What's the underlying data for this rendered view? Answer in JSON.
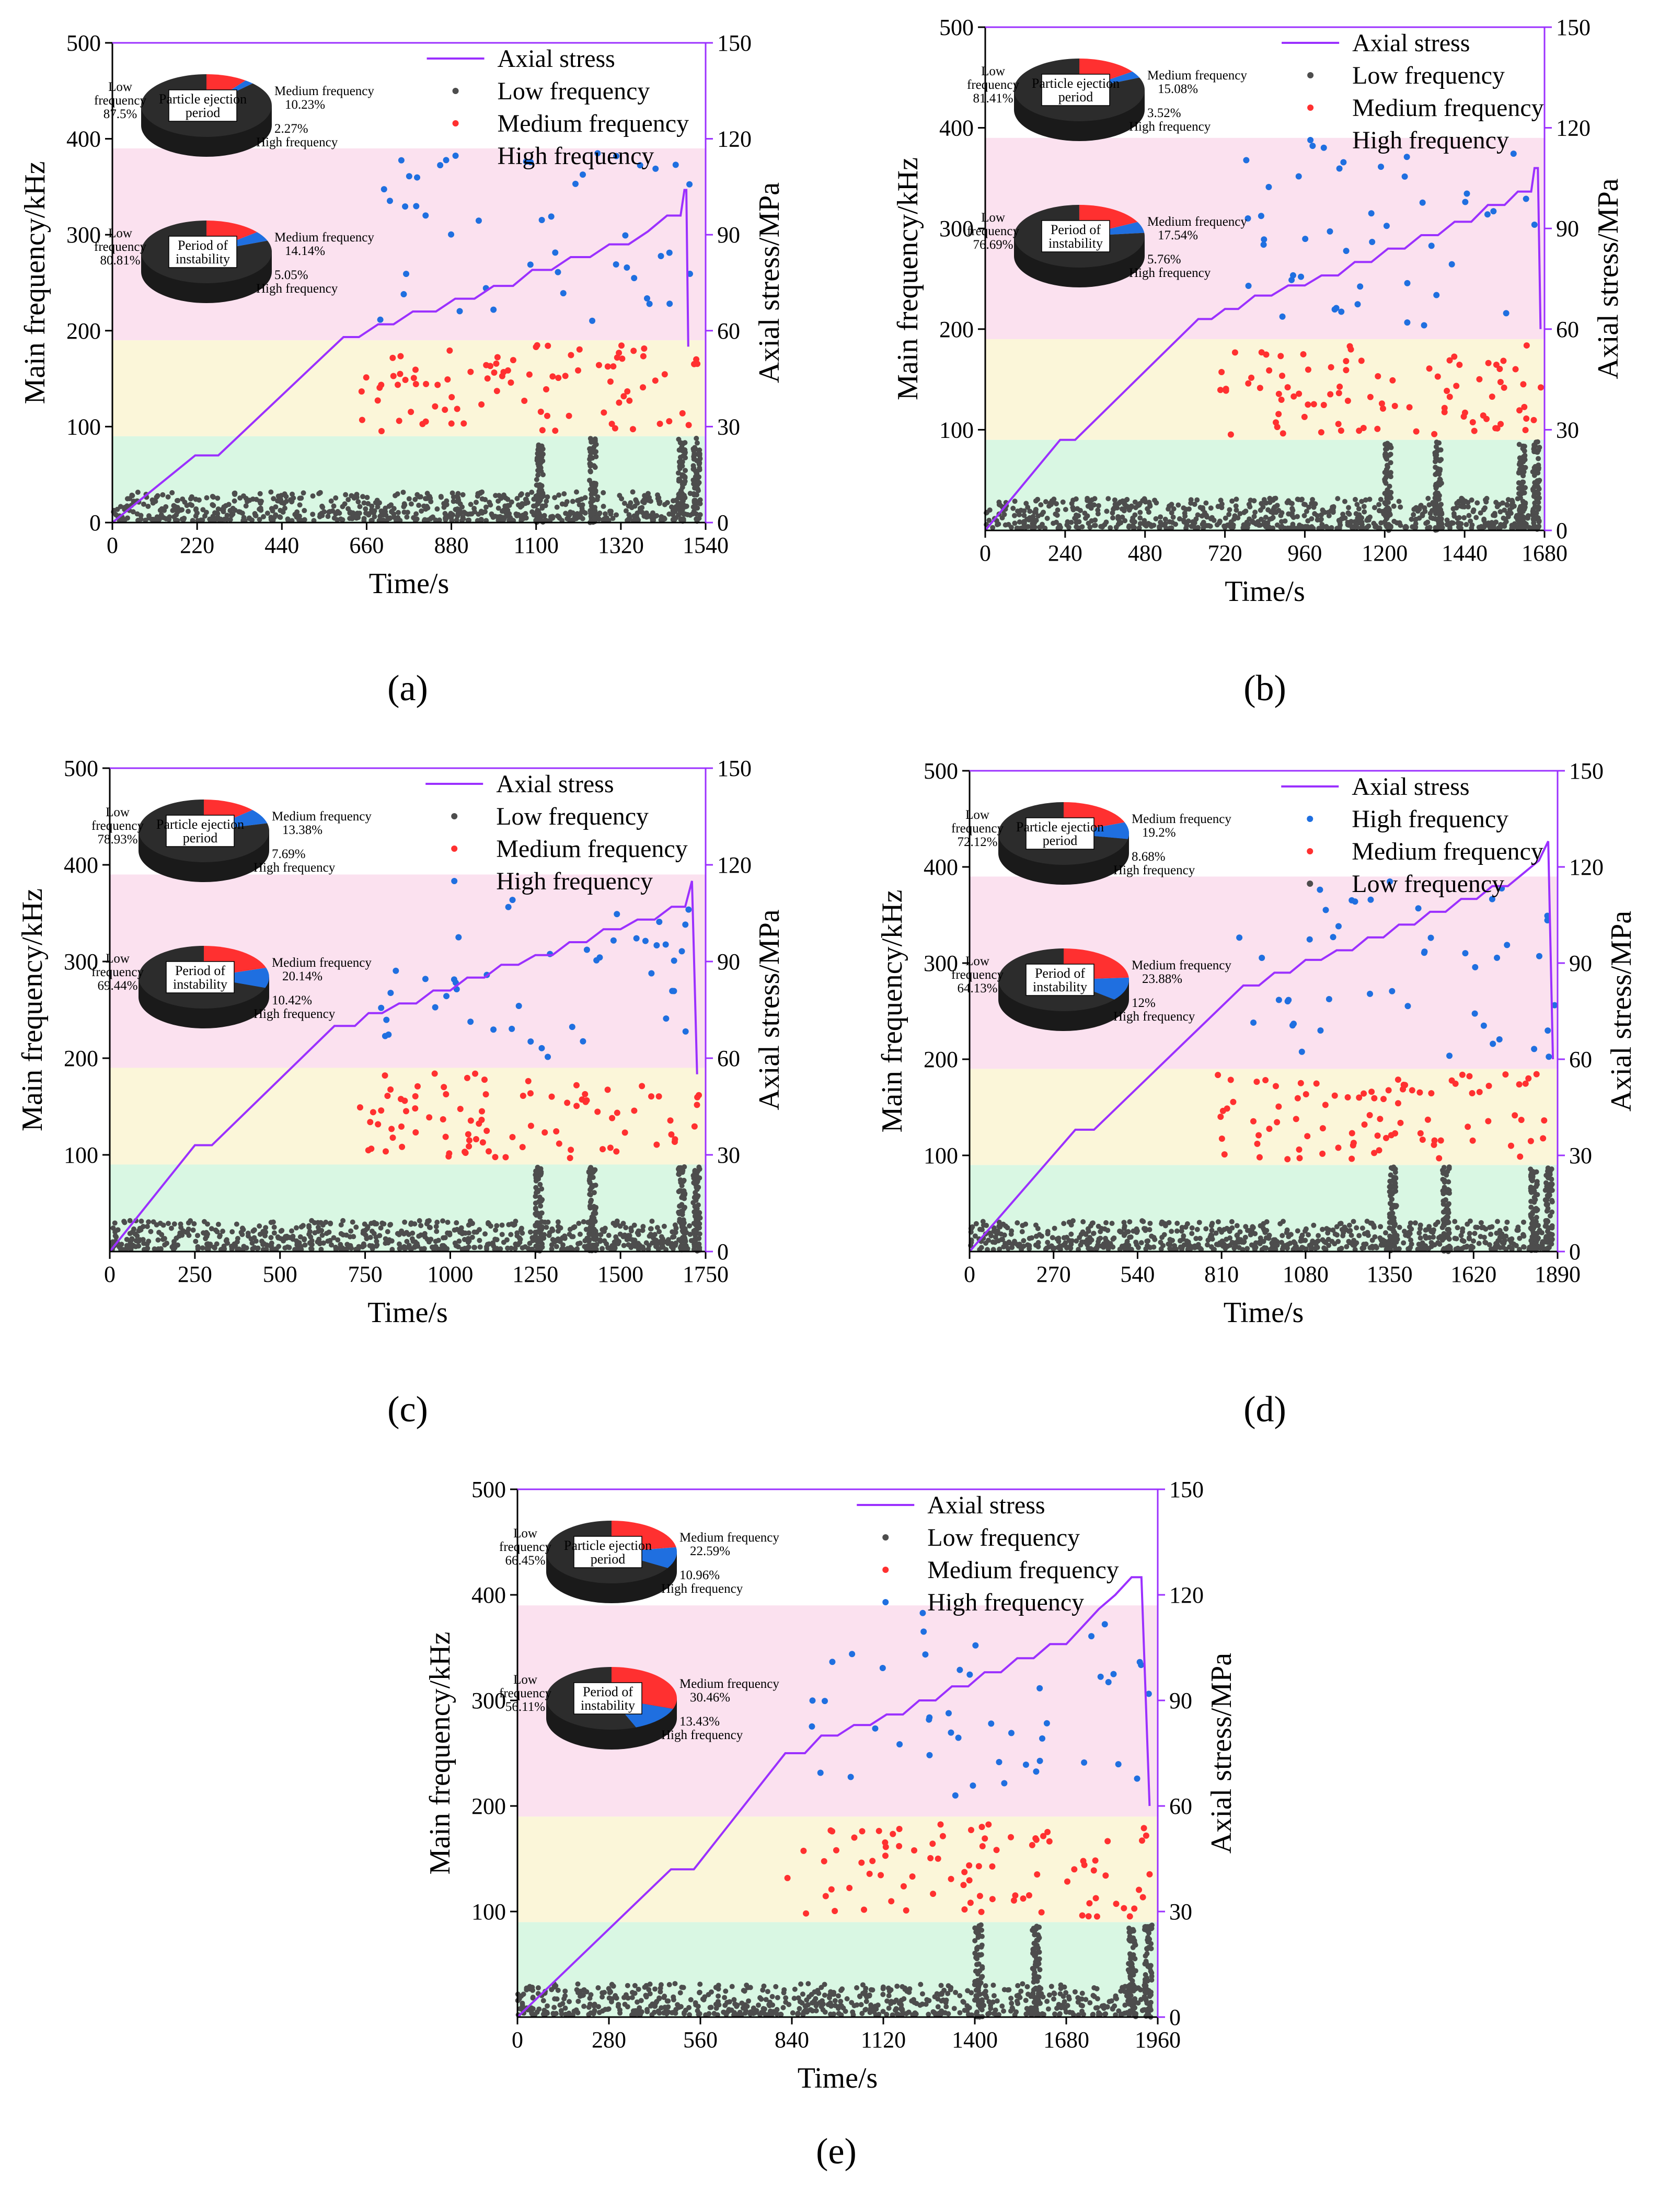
{
  "figure": {
    "panel_labels": [
      "(a)",
      "(b)",
      "(c)",
      "(d)",
      "(e)"
    ]
  },
  "colors": {
    "axial_stress": "#9b30ff",
    "low_frequency": "#4d4d4d",
    "medium_frequency": "#ff3030",
    "high_frequency": "#1f6fe0",
    "band_low": "#d9f7e3",
    "band_medium": "#fbf6d9",
    "band_high": "#fbe1ef",
    "pie_dark": "#2c2c2c"
  },
  "chart_data": [
    {
      "type": "scatter",
      "panel": "(a)",
      "xlabel": "Time/s",
      "ylabel": "Main frequency/kHz",
      "y2label": "Axial stress/MPa",
      "xlim": [
        0,
        1540
      ],
      "ylim": [
        0,
        500
      ],
      "y2lim": [
        0,
        150
      ],
      "xticks": [
        0,
        220,
        440,
        660,
        880,
        1100,
        1320,
        1540
      ],
      "yticks": [
        0,
        100,
        200,
        300,
        400,
        500
      ],
      "y2ticks": [
        0,
        30,
        60,
        90,
        120,
        150
      ],
      "frequency_bands_kHz": {
        "low": [
          0,
          90
        ],
        "medium": [
          90,
          190
        ],
        "high": [
          190,
          390
        ]
      },
      "legend": [
        "Axial stress",
        "Low frequency",
        "Medium frequency",
        "High frequency"
      ],
      "axial_stress": {
        "x": [
          0,
          215,
          275,
          600,
          640,
          690,
          730,
          780,
          840,
          890,
          940,
          990,
          1040,
          1090,
          1140,
          1190,
          1240,
          1290,
          1340,
          1390,
          1440,
          1475,
          1485,
          1490,
          1495
        ],
        "y": [
          0,
          21,
          21,
          58,
          58,
          62,
          62,
          66,
          66,
          70,
          70,
          74,
          74,
          79,
          79,
          83,
          83,
          87,
          87,
          91,
          96,
          96,
          104,
          104,
          55
        ]
      },
      "pies": [
        {
          "title": "Particle ejection period",
          "slices": [
            {
              "name": "Low frequency",
              "value": 87.5,
              "label": "87.5%"
            },
            {
              "name": "Medium frequency",
              "value": 10.23,
              "label": "10.23%"
            },
            {
              "name": "High frequency",
              "value": 2.27,
              "label": "2.27%"
            }
          ]
        },
        {
          "title": "Period of instability",
          "slices": [
            {
              "name": "Low frequency",
              "value": 80.81,
              "label": "80.81%"
            },
            {
              "name": "Medium frequency",
              "value": 14.14,
              "label": "14.14%"
            },
            {
              "name": "High frequency",
              "value": 5.05,
              "label": "5.05%"
            }
          ]
        }
      ]
    },
    {
      "type": "scatter",
      "panel": "(b)",
      "xlabel": "Time/s",
      "ylabel": "Main frequency/kHz",
      "y2label": "Axial stress/MPa",
      "xlim": [
        0,
        1680
      ],
      "ylim": [
        0,
        500
      ],
      "y2lim": [
        0,
        150
      ],
      "xticks": [
        0,
        240,
        480,
        720,
        960,
        1200,
        1440,
        1680
      ],
      "yticks": [
        100,
        200,
        300,
        400,
        500
      ],
      "y2ticks": [
        0,
        30,
        60,
        90,
        120,
        150
      ],
      "frequency_bands_kHz": {
        "low": [
          0,
          90
        ],
        "medium": [
          90,
          190
        ],
        "high": [
          190,
          390
        ]
      },
      "legend": [
        "Axial stress",
        "Low frequency",
        "Medium frequency",
        "High frequency"
      ],
      "axial_stress": {
        "x": [
          0,
          225,
          270,
          640,
          680,
          720,
          760,
          810,
          860,
          910,
          960,
          1010,
          1060,
          1110,
          1160,
          1210,
          1260,
          1310,
          1360,
          1410,
          1460,
          1510,
          1560,
          1600,
          1640,
          1650,
          1660,
          1668
        ],
        "y": [
          0,
          27,
          27,
          63,
          63,
          66,
          66,
          70,
          70,
          73,
          73,
          76,
          76,
          80,
          80,
          84,
          84,
          88,
          88,
          92,
          92,
          97,
          97,
          101,
          101,
          108,
          108,
          60
        ]
      },
      "pies": [
        {
          "title": "Particle ejection period",
          "slices": [
            {
              "name": "Low frequency",
              "value": 81.41,
              "label": "81.41%"
            },
            {
              "name": "Medium frequency",
              "value": 15.08,
              "label": "15.08%"
            },
            {
              "name": "High frequency",
              "value": 3.52,
              "label": "3.52%"
            }
          ]
        },
        {
          "title": "Period of instability",
          "slices": [
            {
              "name": "Low frequency",
              "value": 76.69,
              "label": "76.69%"
            },
            {
              "name": "Medium frequency",
              "value": 17.54,
              "label": "17.54%"
            },
            {
              "name": "High frequency",
              "value": 5.76,
              "label": "5.76%"
            }
          ]
        }
      ]
    },
    {
      "type": "scatter",
      "panel": "(c)",
      "xlabel": "Time/s",
      "ylabel": "Main frequency/kHz",
      "y2label": "Axial stress/MPa",
      "xlim": [
        0,
        1750
      ],
      "ylim": [
        0,
        500
      ],
      "y2lim": [
        0,
        150
      ],
      "xticks": [
        0,
        250,
        500,
        750,
        1000,
        1250,
        1500,
        1750
      ],
      "yticks": [
        100,
        200,
        300,
        400,
        500
      ],
      "y2ticks": [
        0,
        30,
        60,
        90,
        120,
        150
      ],
      "frequency_bands_kHz": {
        "low": [
          0,
          90
        ],
        "medium": [
          90,
          190
        ],
        "high": [
          190,
          390
        ]
      },
      "legend": [
        "Axial stress",
        "Low frequency",
        "Medium frequency",
        "High frequency"
      ],
      "axial_stress": {
        "x": [
          0,
          250,
          300,
          660,
          720,
          760,
          800,
          850,
          900,
          950,
          1000,
          1050,
          1100,
          1150,
          1200,
          1250,
          1300,
          1350,
          1400,
          1450,
          1500,
          1550,
          1600,
          1650,
          1690,
          1710,
          1725
        ],
        "y": [
          0,
          33,
          33,
          70,
          70,
          74,
          74,
          77,
          77,
          81,
          81,
          85,
          85,
          89,
          89,
          92,
          92,
          96,
          96,
          100,
          100,
          103,
          103,
          107,
          107,
          115,
          55
        ]
      },
      "pies": [
        {
          "title": "Particle ejection period",
          "slices": [
            {
              "name": "Low frequency",
              "value": 78.93,
              "label": "78.93%"
            },
            {
              "name": "Medium frequency",
              "value": 13.38,
              "label": "13.38%"
            },
            {
              "name": "High frequency",
              "value": 7.69,
              "label": "7.69%"
            }
          ]
        },
        {
          "title": "Period of instability",
          "slices": [
            {
              "name": "Low frequency",
              "value": 69.44,
              "label": "69.44%"
            },
            {
              "name": "Medium frequency",
              "value": 20.14,
              "label": "20.14%"
            },
            {
              "name": "High frequency",
              "value": 10.42,
              "label": "10.42%"
            }
          ]
        }
      ]
    },
    {
      "type": "scatter",
      "panel": "(d)",
      "xlabel": "Time/s",
      "ylabel": "Main frequency/kHz",
      "y2label": "Axial stress/MPa",
      "xlim": [
        0,
        1890
      ],
      "ylim": [
        0,
        500
      ],
      "y2lim": [
        0,
        150
      ],
      "xticks": [
        0,
        270,
        540,
        810,
        1080,
        1350,
        1620,
        1890
      ],
      "yticks": [
        100,
        200,
        300,
        400,
        500
      ],
      "y2ticks": [
        0,
        30,
        60,
        90,
        120,
        150
      ],
      "frequency_bands_kHz": {
        "low": [
          0,
          90
        ],
        "medium": [
          90,
          190
        ],
        "high": [
          190,
          390
        ]
      },
      "legend": [
        "Axial stress",
        "High frequency",
        "Medium frequency",
        "Low frequency"
      ],
      "legend_order_note": "",
      "axial_stress": {
        "x": [
          0,
          340,
          400,
          880,
          930,
          980,
          1030,
          1080,
          1130,
          1180,
          1230,
          1280,
          1330,
          1380,
          1430,
          1480,
          1530,
          1580,
          1630,
          1680,
          1730,
          1780,
          1830,
          1860,
          1875
        ],
        "y": [
          0,
          38,
          38,
          83,
          83,
          87,
          87,
          91,
          91,
          94,
          94,
          98,
          98,
          102,
          102,
          106,
          106,
          110,
          110,
          114,
          114,
          118,
          122,
          128,
          60
        ]
      },
      "pies": [
        {
          "title": "Particle ejection period",
          "slices": [
            {
              "name": "Low frequency",
              "value": 72.12,
              "label": "72.12%"
            },
            {
              "name": "Medium frequency",
              "value": 19.2,
              "label": "19.2%"
            },
            {
              "name": "High frequency",
              "value": 8.68,
              "label": "8.68%"
            }
          ]
        },
        {
          "title": "Period of instability",
          "slices": [
            {
              "name": "Low frequency",
              "value": 64.13,
              "label": "64.13%"
            },
            {
              "name": "Medium frequency",
              "value": 23.88,
              "label": "23.88%"
            },
            {
              "name": "High frequency",
              "value": 12,
              "label": "12%"
            }
          ]
        }
      ]
    },
    {
      "type": "scatter",
      "panel": "(e)",
      "xlabel": "Time/s",
      "ylabel": "Main frequency/kHz",
      "y2label": "Axial stress/MPa",
      "xlim": [
        0,
        1960
      ],
      "ylim": [
        0,
        500
      ],
      "y2lim": [
        0,
        150
      ],
      "xticks": [
        0,
        280,
        560,
        840,
        1120,
        1400,
        1680,
        1960
      ],
      "yticks": [
        100,
        200,
        300,
        400,
        500
      ],
      "y2ticks": [
        0,
        30,
        60,
        90,
        120,
        150
      ],
      "frequency_bands_kHz": {
        "low": [
          0,
          90
        ],
        "medium": [
          90,
          190
        ],
        "high": [
          190,
          390
        ]
      },
      "legend": [
        "Axial stress",
        "Low frequency",
        "Medium frequency",
        "High frequency"
      ],
      "axial_stress": {
        "x": [
          0,
          470,
          540,
          820,
          880,
          930,
          980,
          1030,
          1080,
          1130,
          1180,
          1230,
          1280,
          1330,
          1380,
          1430,
          1480,
          1530,
          1580,
          1630,
          1680,
          1730,
          1780,
          1830,
          1880,
          1910,
          1935
        ],
        "y": [
          0,
          42,
          42,
          75,
          75,
          80,
          80,
          83,
          83,
          86,
          86,
          90,
          90,
          94,
          94,
          98,
          98,
          102,
          102,
          106,
          106,
          111,
          116,
          120,
          125,
          125,
          60
        ]
      },
      "pies": [
        {
          "title": "Particle ejection period",
          "slices": [
            {
              "name": "Low frequency",
              "value": 66.45,
              "label": "66.45%"
            },
            {
              "name": "Medium frequency",
              "value": 22.59,
              "label": "22.59%"
            },
            {
              "name": "High frequency",
              "value": 10.96,
              "label": "10.96%"
            }
          ]
        },
        {
          "title": "Period of instability",
          "slices": [
            {
              "name": "Low frequency",
              "value": 56.11,
              "label": "56.11%"
            },
            {
              "name": "Medium frequency",
              "value": 30.46,
              "label": "30.46%"
            },
            {
              "name": "High frequency",
              "value": 13.43,
              "label": "13.43%"
            }
          ]
        }
      ]
    }
  ]
}
